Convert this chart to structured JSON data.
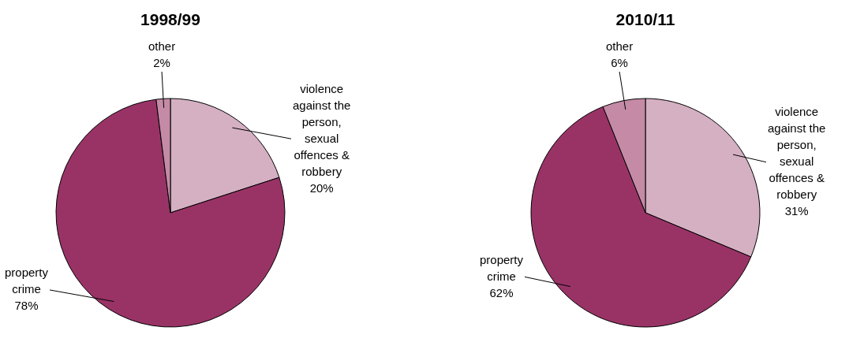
{
  "chart_data": [
    {
      "type": "pie",
      "title": "1998/99",
      "categories": [
        "violence against the person, sexual offences & robbery",
        "property crime",
        "other"
      ],
      "values": [
        20,
        78,
        2
      ],
      "colors": [
        "#d4b0c2",
        "#993366",
        "#c48aa6"
      ],
      "value_labels": [
        "20%",
        "78%",
        "2%"
      ]
    },
    {
      "type": "pie",
      "title": "2010/11",
      "categories": [
        "violence against the person, sexual offences & robbery",
        "property crime",
        "other"
      ],
      "values": [
        31,
        62,
        6
      ],
      "colors": [
        "#d4b0c2",
        "#993366",
        "#c48aa6"
      ],
      "value_labels": [
        "31%",
        "62%",
        "6%"
      ]
    }
  ]
}
